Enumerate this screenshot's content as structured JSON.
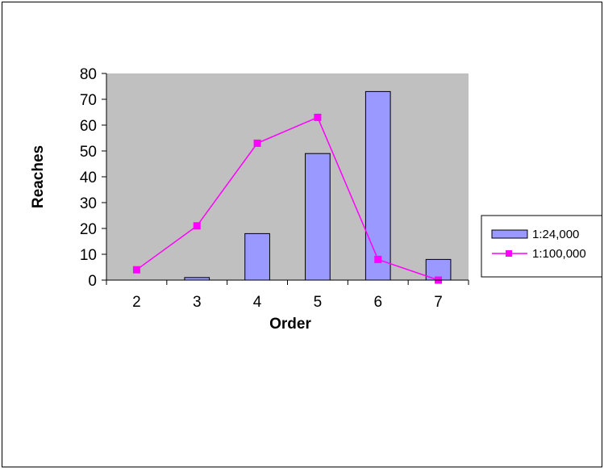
{
  "chart_data": {
    "type": "bar",
    "categories": [
      "2",
      "3",
      "4",
      "5",
      "6",
      "7"
    ],
    "xlabel": "Order",
    "ylabel": "Reaches",
    "ylim": [
      0,
      80
    ],
    "yticks": [
      0,
      10,
      20,
      30,
      40,
      50,
      60,
      70,
      80
    ],
    "grid": false,
    "legend_position": "right",
    "series": [
      {
        "name": "1:24,000",
        "type": "bar",
        "values": [
          0,
          1,
          18,
          49,
          73,
          8
        ]
      },
      {
        "name": "1:100,000",
        "type": "line",
        "values": [
          4,
          21,
          53,
          63,
          8,
          0
        ]
      }
    ],
    "colors": {
      "plot_background": "#c0c0c0",
      "bar_fill": "#9999ff",
      "bar_stroke": "#000000",
      "line": "#ff00ff",
      "marker": "#ff00ff"
    }
  }
}
